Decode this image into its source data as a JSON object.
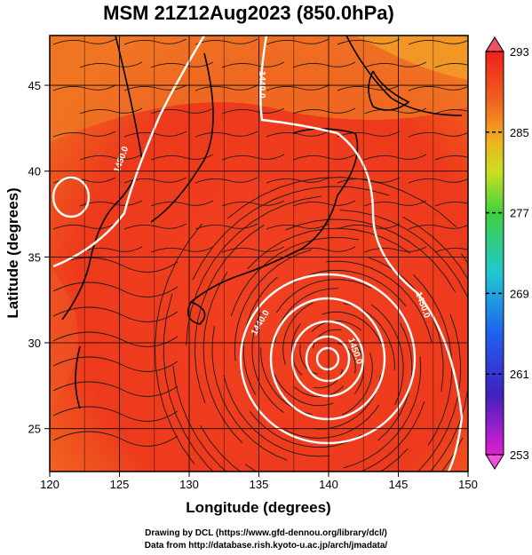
{
  "title": "MSM 21Z12Aug2023 (850.0hPa)",
  "map": {
    "xlabel": "Longitude (degrees)",
    "ylabel": "Latitude  (degrees)",
    "lon_range": [
      120,
      150
    ],
    "lat_range": [
      22.5,
      47.9
    ],
    "lon_ticks": [
      "120",
      "125",
      "130",
      "135",
      "140",
      "145",
      "150"
    ],
    "lat_ticks": [
      "25",
      "30",
      "35",
      "40",
      "45"
    ],
    "fill_color": "#ee3a1c",
    "land_outline_color": "#000000",
    "streamline_color": "#1a1a1a",
    "contour_color": "#ffffff"
  },
  "colorbar": {
    "ticks": [
      "293",
      "285",
      "277",
      "269",
      "261",
      "253"
    ],
    "colors": [
      "#f03020",
      "#f07020",
      "#f0c820",
      "#40d040",
      "#20c8c8",
      "#2070f0",
      "#2020c0",
      "#c020c0"
    ]
  },
  "contour_labels": [
    {
      "text": "1440.0"
    },
    {
      "text": "1450.0"
    },
    {
      "text": "1440.0"
    },
    {
      "text": "1450.0"
    },
    {
      "text": "1450.0"
    }
  ],
  "credits": {
    "line1": "Drawing by DCL (https://www.gfd-dennou.org/library/dcl/)",
    "line2": "Data from http://database.rish.kyoto-u.ac.jp/arch/jmadata/"
  }
}
